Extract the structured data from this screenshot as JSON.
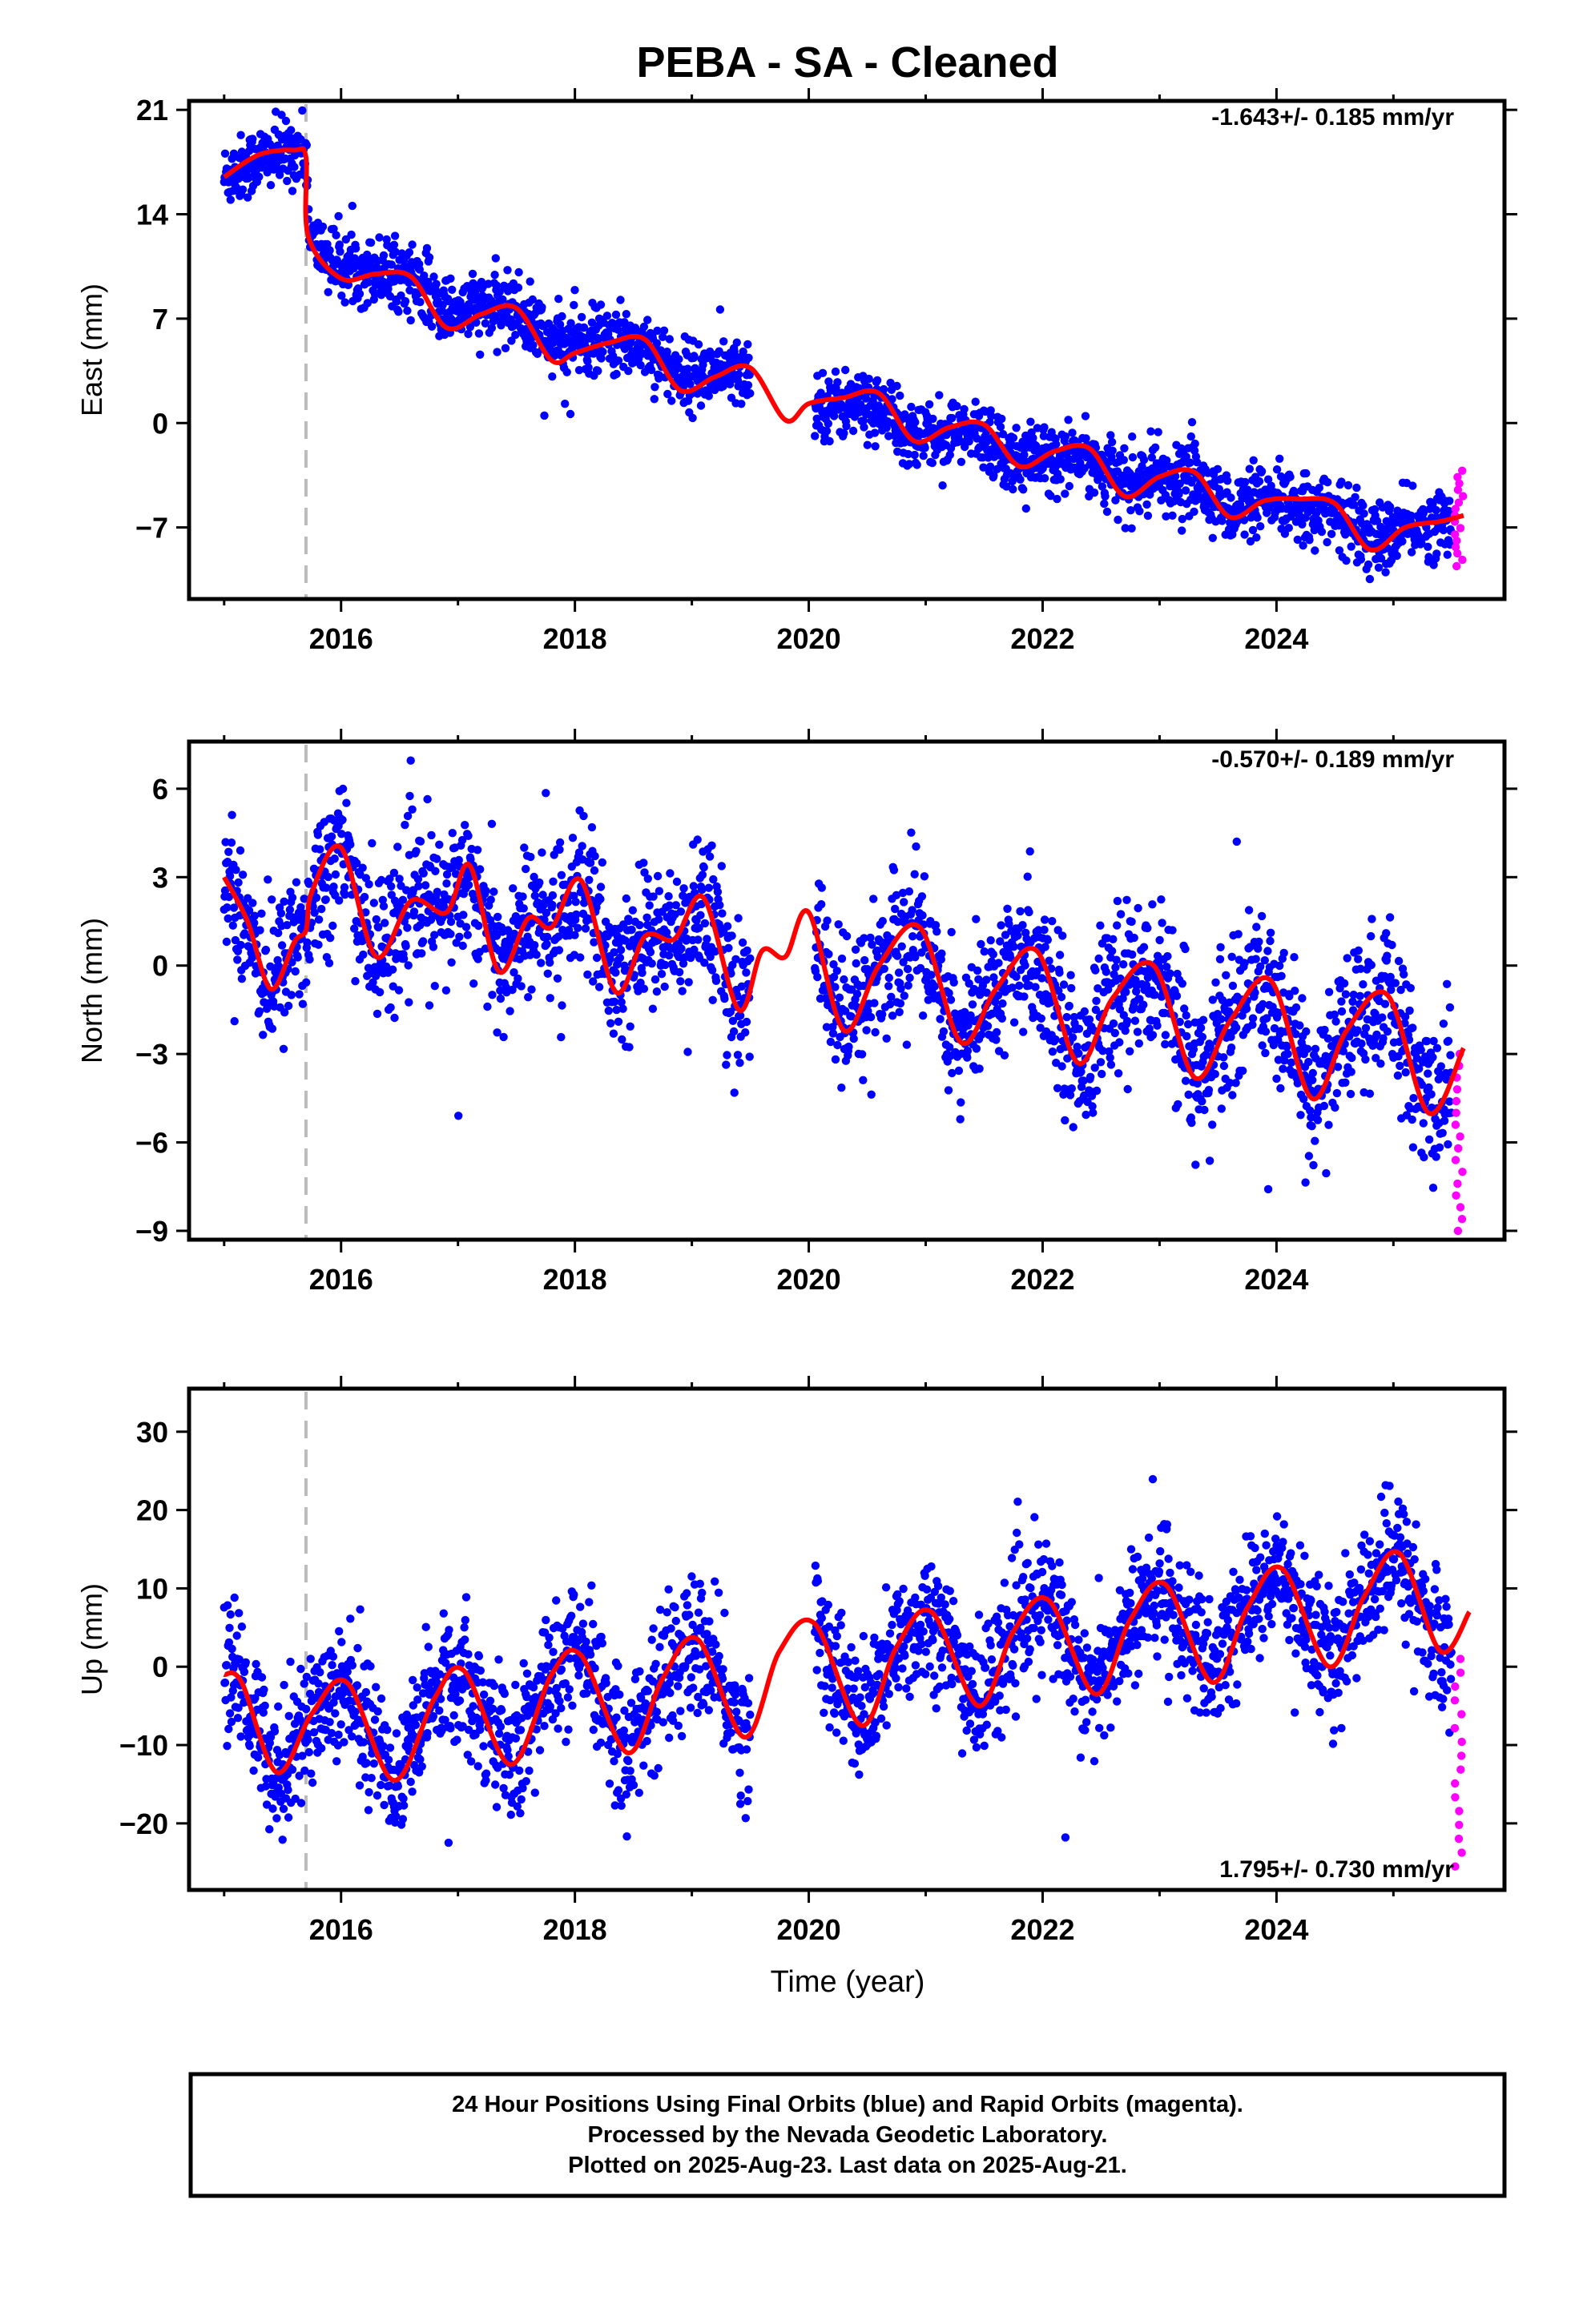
{
  "title": "PEBA  - SA - Cleaned",
  "x_axis_label": "Time (year)",
  "footer": {
    "line1": "24 Hour Positions Using Final Orbits (blue) and Rapid Orbits (magenta).",
    "line2": "Processed by the Nevada Geodetic Laboratory.",
    "line3": "Plotted on 2025-Aug-23. Last data on 2025-Aug-21."
  },
  "colors": {
    "final_orbits": "#0000ff",
    "rapid_orbits": "#ff00ff",
    "model_fit": "#ff0000",
    "equipment_change": "#bbbbbb"
  },
  "chart_data": [
    {
      "type": "scatter",
      "component": "east",
      "ylabel": "East (mm)",
      "xlim": [
        2014.7,
        2025.95
      ],
      "ylim": [
        -11.8,
        21.6
      ],
      "xticks": [
        2016,
        2018,
        2020,
        2022,
        2024
      ],
      "yticks": [
        -7,
        0,
        7,
        14,
        21
      ],
      "rate": "-1.643+/- 0.185 mm/yr",
      "equipment_change_year": 2015.7,
      "data_gap": [
        2019.5,
        2020.05
      ],
      "model_fit": {
        "x": [
          2015.0,
          2015.3,
          2015.6,
          2015.7,
          2015.72,
          2016.0,
          2016.3,
          2016.6,
          2016.9,
          2017.2,
          2017.5,
          2017.8,
          2018.0,
          2018.3,
          2018.6,
          2018.9,
          2019.2,
          2019.5,
          2019.8,
          2020.0,
          2020.3,
          2020.6,
          2020.9,
          2021.2,
          2021.5,
          2021.8,
          2022.1,
          2022.4,
          2022.7,
          2023.0,
          2023.3,
          2023.6,
          2023.9,
          2024.2,
          2024.5,
          2024.8,
          2025.1,
          2025.4,
          2025.6
        ],
        "y": [
          16.5,
          18.0,
          18.3,
          17.8,
          12.5,
          9.7,
          10.0,
          9.8,
          6.4,
          7.3,
          7.7,
          4.2,
          4.7,
          5.4,
          5.6,
          2.2,
          3.1,
          3.7,
          0.2,
          1.3,
          1.7,
          2.0,
          -1.2,
          -0.3,
          -0.1,
          -2.9,
          -1.9,
          -1.7,
          -4.9,
          -3.6,
          -3.3,
          -6.3,
          -5.2,
          -5.1,
          -5.4,
          -8.5,
          -7.0,
          -6.6,
          -6.2
        ]
      },
      "final_orbits_trend": {
        "x": [
          2015.0,
          2015.7,
          2015.75,
          2016.5,
          2017.5,
          2018.5,
          2019.4,
          2020.1,
          2021.0,
          2022.0,
          2023.0,
          2024.0,
          2025.0,
          2025.5
        ],
        "y": [
          16.5,
          18.5,
          12.0,
          10.0,
          7.5,
          5.2,
          3.2,
          1.0,
          -0.8,
          -2.5,
          -3.8,
          -5.8,
          -7.3,
          -6.5
        ]
      },
      "rapid_orbits_range": {
        "x": [
          2025.5,
          2025.62
        ],
        "y": [
          -9.6,
          -3.2
        ]
      }
    },
    {
      "type": "scatter",
      "component": "north",
      "ylabel": "North (mm)",
      "xlim": [
        2014.7,
        2025.95
      ],
      "ylim": [
        -9.3,
        7.6
      ],
      "xticks": [
        2016,
        2018,
        2020,
        2022,
        2024
      ],
      "yticks": [
        -9,
        -6,
        -3,
        0,
        3,
        6
      ],
      "rate": "-0.570+/- 0.189 mm/yr",
      "equipment_change_year": 2015.7,
      "data_gap": [
        2019.5,
        2020.05
      ],
      "model_fit": {
        "x": [
          2015.0,
          2015.2,
          2015.4,
          2015.6,
          2015.7,
          2015.75,
          2016.0,
          2016.3,
          2016.6,
          2016.9,
          2017.1,
          2017.35,
          2017.6,
          2017.8,
          2018.05,
          2018.35,
          2018.6,
          2018.85,
          2019.1,
          2019.4,
          2019.6,
          2019.8,
          2020.0,
          2020.3,
          2020.6,
          2020.95,
          2021.3,
          2021.6,
          2021.95,
          2022.3,
          2022.6,
          2022.95,
          2023.3,
          2023.6,
          2023.95,
          2024.3,
          2024.6,
          2024.95,
          2025.3,
          2025.6
        ],
        "y": [
          3.0,
          1.5,
          -0.8,
          0.8,
          1.2,
          2.5,
          4.0,
          0.3,
          2.2,
          1.8,
          3.4,
          -0.2,
          1.6,
          1.3,
          2.9,
          -0.9,
          1.0,
          0.9,
          2.3,
          -1.5,
          0.5,
          0.3,
          1.8,
          -2.2,
          0.0,
          1.3,
          -2.6,
          -0.8,
          0.5,
          -3.3,
          -1.1,
          0.0,
          -3.8,
          -1.9,
          -0.5,
          -4.5,
          -2.2,
          -1.0,
          -5.0,
          -2.8
        ]
      },
      "rapid_orbits_range": {
        "x": [
          2025.5,
          2025.62
        ],
        "y": [
          -9.0,
          -3.0
        ]
      }
    },
    {
      "type": "scatter",
      "component": "up",
      "ylabel": "Up (mm)",
      "xlim": [
        2014.7,
        2025.95
      ],
      "ylim": [
        -28.5,
        35.5
      ],
      "xticks": [
        2016,
        2018,
        2020,
        2022,
        2024
      ],
      "yticks": [
        -20,
        -10,
        0,
        10,
        20,
        30
      ],
      "rate": "1.795+/- 0.730 mm/yr",
      "equipment_change_year": 2015.7,
      "data_gap": [
        2019.5,
        2020.05
      ],
      "model_fit": {
        "x": [
          2015.0,
          2015.15,
          2015.45,
          2015.75,
          2016.05,
          2016.45,
          2016.8,
          2017.05,
          2017.45,
          2017.8,
          2018.05,
          2018.45,
          2018.75,
          2019.05,
          2019.45,
          2019.75,
          2020.05,
          2020.45,
          2020.75,
          2021.05,
          2021.45,
          2021.75,
          2022.05,
          2022.45,
          2022.75,
          2023.05,
          2023.45,
          2023.75,
          2024.05,
          2024.45,
          2024.75,
          2025.05,
          2025.4,
          2025.65
        ],
        "y": [
          -1.0,
          -2.0,
          -13.5,
          -6.0,
          -2.0,
          -14.5,
          -4.0,
          -0.5,
          -12.5,
          -1.0,
          1.5,
          -11.0,
          -1.5,
          3.5,
          -9.0,
          2.0,
          5.5,
          -7.5,
          2.5,
          7.0,
          -5.0,
          4.5,
          8.5,
          -3.5,
          6.0,
          10.5,
          -2.0,
          7.5,
          12.5,
          0.0,
          9.0,
          14.5,
          2.0,
          7.0
        ]
      },
      "rapid_orbits_range": {
        "x": [
          2025.5,
          2025.62
        ],
        "y": [
          -25.5,
          1.0
        ]
      }
    }
  ]
}
